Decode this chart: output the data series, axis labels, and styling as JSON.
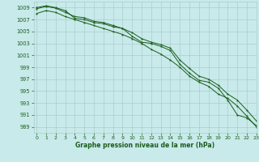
{
  "title": "Graphe pression niveau de la mer (hPa)",
  "bg_color": "#c8eaea",
  "grid_color": "#aacccc",
  "line_color": "#1a5c1a",
  "xlim": [
    -0.3,
    23
  ],
  "ylim": [
    988,
    1010
  ],
  "yticks": [
    989,
    991,
    993,
    995,
    997,
    999,
    1001,
    1003,
    1005,
    1007,
    1009
  ],
  "xticks": [
    0,
    1,
    2,
    3,
    4,
    5,
    6,
    7,
    8,
    9,
    10,
    11,
    12,
    13,
    14,
    15,
    16,
    17,
    18,
    19,
    20,
    21,
    22,
    23
  ],
  "series1": [
    1009.0,
    1009.3,
    1009.0,
    1008.5,
    1007.2,
    1007.0,
    1006.5,
    1006.3,
    1005.8,
    1005.5,
    1004.2,
    1003.2,
    1003.0,
    1002.5,
    1001.8,
    999.5,
    998.0,
    996.8,
    996.5,
    995.5,
    993.5,
    991.0,
    990.5,
    989.2
  ],
  "series2": [
    1008.8,
    1009.2,
    1008.9,
    1008.2,
    1007.5,
    1007.3,
    1006.7,
    1006.5,
    1006.0,
    1005.5,
    1004.8,
    1003.8,
    1003.2,
    1002.8,
    1002.2,
    1000.2,
    998.8,
    997.5,
    997.0,
    996.0,
    994.5,
    993.5,
    991.8,
    990.0
  ],
  "series3": [
    1008.0,
    1008.5,
    1008.2,
    1007.5,
    1007.0,
    1006.5,
    1006.0,
    1005.5,
    1005.0,
    1004.5,
    1003.8,
    1003.0,
    1002.0,
    1001.2,
    1000.2,
    999.0,
    997.5,
    996.5,
    995.8,
    994.5,
    993.8,
    992.5,
    990.8,
    989.0
  ]
}
